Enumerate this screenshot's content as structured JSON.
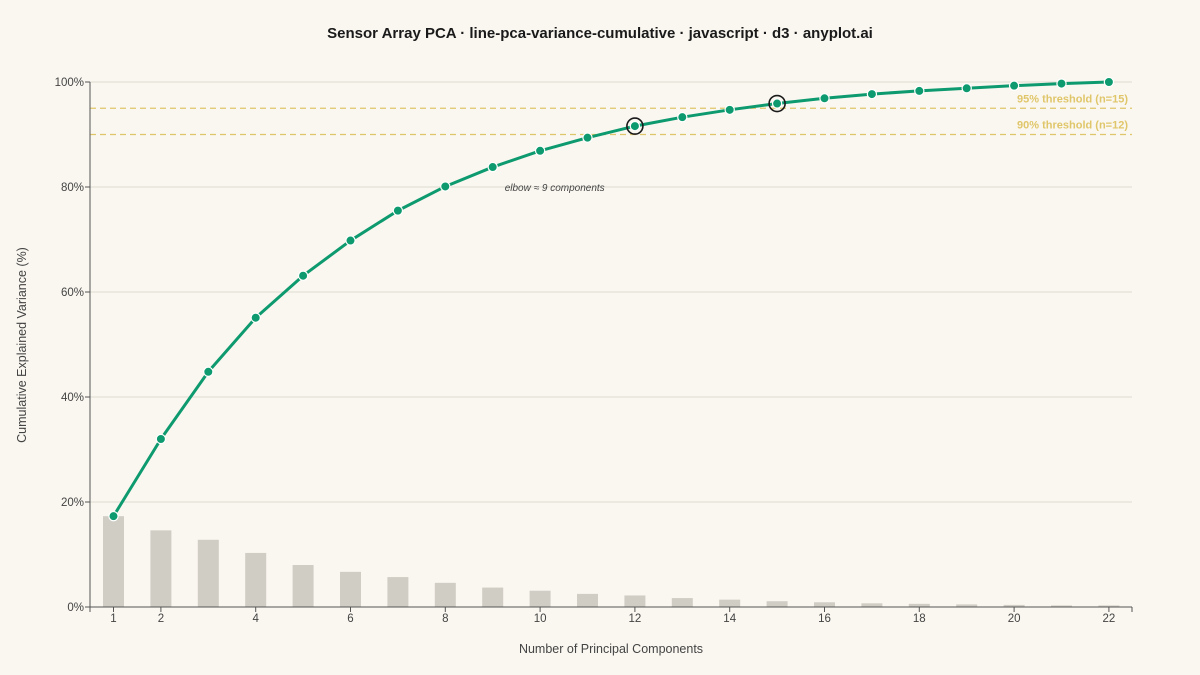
{
  "chart_data": {
    "type": "line",
    "title": "Sensor Array PCA · line-pca-variance-cumulative · javascript · d3 · anyplot.ai",
    "xlabel": "Number of Principal Components",
    "ylabel": "Cumulative Explained Variance (%)",
    "xlim": [
      1,
      22
    ],
    "ylim": [
      0,
      100
    ],
    "x": [
      1,
      2,
      3,
      4,
      5,
      6,
      7,
      8,
      9,
      10,
      11,
      12,
      13,
      14,
      15,
      16,
      17,
      18,
      19,
      20,
      21,
      22
    ],
    "x_ticks": [
      1,
      2,
      4,
      6,
      8,
      10,
      12,
      14,
      16,
      18,
      20,
      22
    ],
    "y_ticks": [
      "0%",
      "20%",
      "40%",
      "60%",
      "80%",
      "100%"
    ],
    "series": [
      {
        "type": "line",
        "color": "#0e9a6f",
        "values": [
          17.3,
          32.0,
          44.8,
          55.1,
          63.1,
          69.8,
          75.5,
          80.1,
          83.8,
          86.9,
          89.4,
          91.6,
          93.3,
          94.7,
          95.9,
          96.9,
          97.7,
          98.3,
          98.8,
          99.3,
          99.7,
          100.0
        ]
      },
      {
        "type": "bar",
        "color": "#cfcdc4",
        "values": [
          17.3,
          14.6,
          12.8,
          10.3,
          8.0,
          6.7,
          5.7,
          4.6,
          3.7,
          3.1,
          2.5,
          2.2,
          1.7,
          1.4,
          1.1,
          0.9,
          0.7,
          0.6,
          0.5,
          0.4,
          0.3,
          0.3
        ]
      }
    ],
    "thresholds": [
      {
        "value": 95,
        "label": "95% threshold (n=15)",
        "n": 15,
        "color": "#e0c66a"
      },
      {
        "value": 90,
        "label": "90% threshold (n=12)",
        "n": 12,
        "color": "#e0c66a"
      }
    ],
    "annotation": {
      "text": "elbow ≈ 9 components",
      "x": 9
    },
    "grid": true,
    "legend": "none"
  }
}
